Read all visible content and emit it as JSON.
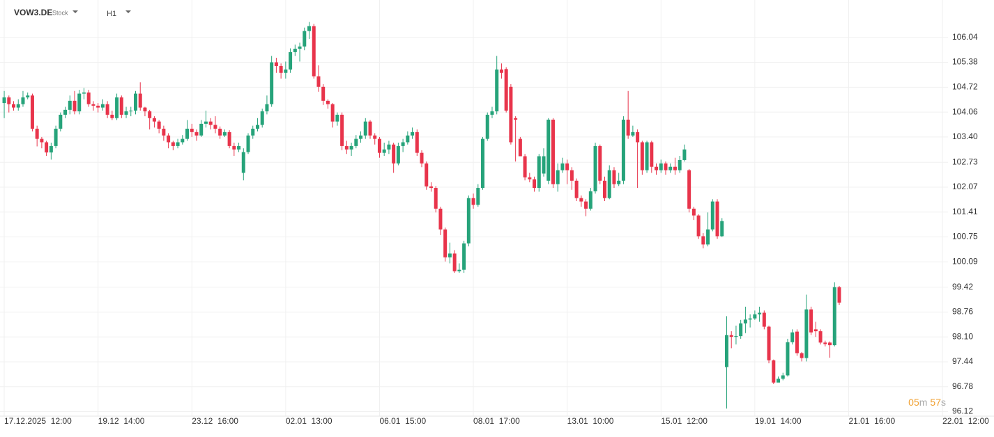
{
  "chart_data": {
    "type": "candlestick",
    "symbol": "VOW3.DE",
    "instrument_type": "Stock",
    "timeframe": "H1",
    "countdown": {
      "minutes": "05",
      "minutes_unit": "m",
      "seconds": "57",
      "seconds_unit": "s"
    },
    "up_color": "#26a37a",
    "down_color": "#e8344b",
    "grid": true,
    "ylim": [
      96.0,
      106.7
    ],
    "yticks": [
      106.04,
      105.38,
      104.72,
      104.06,
      {
        "value": 103.4,
        "label": "103.40"
      },
      102.73,
      102.07,
      101.41,
      100.75,
      100.09,
      99.42,
      98.76,
      {
        "value": 98.1,
        "label": "98.10"
      },
      97.44,
      96.78,
      96.12
    ],
    "xlim": [
      -0.9,
      209.5
    ],
    "xticks": [
      {
        "value": 0,
        "label": "17.12.2025  12:00"
      },
      {
        "value": 20,
        "label": "19.12  14:00"
      },
      {
        "value": 40,
        "label": "23.12  16:00"
      },
      {
        "value": 60,
        "label": "02.01  13:00"
      },
      {
        "value": 80,
        "label": "06.01  15:00"
      },
      {
        "value": 100,
        "label": "08.01  17:00"
      },
      {
        "value": 120,
        "label": "13.01  10:00"
      },
      {
        "value": 140,
        "label": "15.01  12:00"
      },
      {
        "value": 160,
        "label": "19.01  14:00"
      },
      {
        "value": 180,
        "label": "21.01  16:00"
      },
      {
        "value": 200,
        "label": "22.01  12:00"
      }
    ],
    "ohlc": [
      [
        104.3,
        104.62,
        103.9,
        104.45
      ],
      [
        104.45,
        104.5,
        104.05,
        104.27
      ],
      [
        104.27,
        104.35,
        104.1,
        104.18
      ],
      [
        104.18,
        104.4,
        104.1,
        104.27
      ],
      [
        104.27,
        104.62,
        104.2,
        104.45
      ],
      [
        104.45,
        104.58,
        104.4,
        104.5
      ],
      [
        104.5,
        104.55,
        103.55,
        103.62
      ],
      [
        103.62,
        103.7,
        103.15,
        103.35
      ],
      [
        103.35,
        103.4,
        103.1,
        103.26
      ],
      [
        103.26,
        103.3,
        102.9,
        102.99
      ],
      [
        102.99,
        103.25,
        102.8,
        103.16
      ],
      [
        103.16,
        103.7,
        103.1,
        103.62
      ],
      [
        103.62,
        104.05,
        103.55,
        103.99
      ],
      [
        103.99,
        104.2,
        103.9,
        104.12
      ],
      [
        104.12,
        104.5,
        104.0,
        104.36
      ],
      [
        104.36,
        104.62,
        104.0,
        104.08
      ],
      [
        104.08,
        104.65,
        104.0,
        104.55
      ],
      [
        104.55,
        104.7,
        104.4,
        104.58
      ],
      [
        104.58,
        104.65,
        104.2,
        104.27
      ],
      [
        104.27,
        104.35,
        104.1,
        104.23
      ],
      [
        104.23,
        104.3,
        104.05,
        104.18
      ],
      [
        104.18,
        104.4,
        104.1,
        104.27
      ],
      [
        104.27,
        104.35,
        103.9,
        103.99
      ],
      [
        103.99,
        104.1,
        103.85,
        103.9
      ],
      [
        103.9,
        104.55,
        103.85,
        104.45
      ],
      [
        104.45,
        104.5,
        103.9,
        103.99
      ],
      [
        103.99,
        104.2,
        103.9,
        104.08
      ],
      [
        104.08,
        104.2,
        103.95,
        104.1
      ],
      [
        104.1,
        104.62,
        104.0,
        104.55
      ],
      [
        104.55,
        104.85,
        104.1,
        104.18
      ],
      [
        104.18,
        104.2,
        103.95,
        104.08
      ],
      [
        104.08,
        104.12,
        103.6,
        103.9
      ],
      [
        103.9,
        103.95,
        103.65,
        103.81
      ],
      [
        103.81,
        103.85,
        103.5,
        103.62
      ],
      [
        103.62,
        103.7,
        103.3,
        103.44
      ],
      [
        103.44,
        103.5,
        103.1,
        103.26
      ],
      [
        103.26,
        103.3,
        103.05,
        103.16
      ],
      [
        103.16,
        103.35,
        103.1,
        103.26
      ],
      [
        103.26,
        103.45,
        103.2,
        103.35
      ],
      [
        103.35,
        103.85,
        103.3,
        103.62
      ],
      [
        103.62,
        103.75,
        103.4,
        103.53
      ],
      [
        103.53,
        103.6,
        103.3,
        103.44
      ],
      [
        103.44,
        103.85,
        103.4,
        103.75
      ],
      [
        103.75,
        104.1,
        103.65,
        103.81
      ],
      [
        103.81,
        103.9,
        103.6,
        103.72
      ],
      [
        103.72,
        103.95,
        103.5,
        103.62
      ],
      [
        103.62,
        103.68,
        103.35,
        103.44
      ],
      [
        103.44,
        103.6,
        103.4,
        103.53
      ],
      [
        103.53,
        103.58,
        103.1,
        103.16
      ],
      [
        103.16,
        103.25,
        102.9,
        103.07
      ],
      [
        103.07,
        103.25,
        103.0,
        103.16
      ],
      [
        102.45,
        103.1,
        102.25,
        103.0
      ],
      [
        103.0,
        103.5,
        102.95,
        103.44
      ],
      [
        103.44,
        103.7,
        103.35,
        103.62
      ],
      [
        103.62,
        103.9,
        103.55,
        103.72
      ],
      [
        103.72,
        104.15,
        103.65,
        104.08
      ],
      [
        104.08,
        104.5,
        104.0,
        104.27
      ],
      [
        104.27,
        105.55,
        104.2,
        105.38
      ],
      [
        105.38,
        105.5,
        105.1,
        105.28
      ],
      [
        105.28,
        105.35,
        104.95,
        105.1
      ],
      [
        105.1,
        105.4,
        104.95,
        105.19
      ],
      [
        105.19,
        105.75,
        105.1,
        105.65
      ],
      [
        105.65,
        105.85,
        105.55,
        105.74
      ],
      [
        105.74,
        105.9,
        105.4,
        105.8
      ],
      [
        105.8,
        106.3,
        105.7,
        106.21
      ],
      [
        106.21,
        106.45,
        106.0,
        106.34
      ],
      [
        106.34,
        106.4,
        104.95,
        105.01
      ],
      [
        105.01,
        105.3,
        104.6,
        104.73
      ],
      [
        104.73,
        104.8,
        104.25,
        104.36
      ],
      [
        104.36,
        104.4,
        104.15,
        104.27
      ],
      [
        104.27,
        104.3,
        103.65,
        103.81
      ],
      [
        103.81,
        104.05,
        103.7,
        103.99
      ],
      [
        103.99,
        104.05,
        103.05,
        103.16
      ],
      [
        103.16,
        103.3,
        102.95,
        103.07
      ],
      [
        103.07,
        103.25,
        102.9,
        103.16
      ],
      [
        103.16,
        103.45,
        103.1,
        103.35
      ],
      [
        103.35,
        103.55,
        103.25,
        103.44
      ],
      [
        103.44,
        103.9,
        103.35,
        103.81
      ],
      [
        103.81,
        103.85,
        103.35,
        103.44
      ],
      [
        103.44,
        103.5,
        103.2,
        103.35
      ],
      [
        103.35,
        103.4,
        102.85,
        102.98
      ],
      [
        102.98,
        103.25,
        102.9,
        103.07
      ],
      [
        103.07,
        103.3,
        102.95,
        103.2
      ],
      [
        103.2,
        103.25,
        102.45,
        102.7
      ],
      [
        102.7,
        103.25,
        102.65,
        103.16
      ],
      [
        103.16,
        103.35,
        103.0,
        103.26
      ],
      [
        103.26,
        103.55,
        103.2,
        103.44
      ],
      [
        103.44,
        103.65,
        103.35,
        103.53
      ],
      [
        103.53,
        103.6,
        102.9,
        102.98
      ],
      [
        102.98,
        103.05,
        102.6,
        102.7
      ],
      [
        102.7,
        102.75,
        102.0,
        102.09
      ],
      [
        102.09,
        102.2,
        101.95,
        102.05
      ],
      [
        102.05,
        102.1,
        101.4,
        101.5
      ],
      [
        101.5,
        101.55,
        100.8,
        100.95
      ],
      [
        100.95,
        101.0,
        100.1,
        100.21
      ],
      [
        100.21,
        100.6,
        100.05,
        100.31
      ],
      [
        100.31,
        100.4,
        99.8,
        99.84
      ],
      [
        99.84,
        100.05,
        99.8,
        99.88
      ],
      [
        99.88,
        100.65,
        99.8,
        100.58
      ],
      [
        100.58,
        101.85,
        100.5,
        101.78
      ],
      [
        101.78,
        101.9,
        101.5,
        101.6
      ],
      [
        101.6,
        102.15,
        101.55,
        102.05
      ],
      [
        102.05,
        103.4,
        102.0,
        103.35
      ],
      [
        103.35,
        104.05,
        103.3,
        103.99
      ],
      [
        103.99,
        104.2,
        103.9,
        104.08
      ],
      [
        104.08,
        105.55,
        104.0,
        105.19
      ],
      [
        105.19,
        105.35,
        104.95,
        105.1
      ],
      [
        105.2,
        105.25,
        104.05,
        104.1
      ],
      [
        104.73,
        104.8,
        103.2,
        103.26
      ],
      [
        103.9,
        103.95,
        102.75,
        103.86
      ],
      [
        103.35,
        103.4,
        102.9,
        102.89
      ],
      [
        102.89,
        102.95,
        102.25,
        102.33
      ],
      [
        102.33,
        102.45,
        102.2,
        102.28
      ],
      [
        102.28,
        102.35,
        101.95,
        102.05
      ],
      [
        102.05,
        102.95,
        101.95,
        102.89
      ],
      [
        102.43,
        103.1,
        102.35,
        102.89
      ],
      [
        102.24,
        103.9,
        102.15,
        103.86
      ],
      [
        103.86,
        103.9,
        102.05,
        102.15
      ],
      [
        102.15,
        102.7,
        101.95,
        102.52
      ],
      [
        102.52,
        102.85,
        102.45,
        102.7
      ],
      [
        102.7,
        102.8,
        102.15,
        102.52
      ],
      [
        102.52,
        102.6,
        102.0,
        102.24
      ],
      [
        102.24,
        102.3,
        101.7,
        101.78
      ],
      [
        101.78,
        101.85,
        101.55,
        101.69
      ],
      [
        101.69,
        101.75,
        101.3,
        101.5
      ],
      [
        101.5,
        102.05,
        101.45,
        101.96
      ],
      [
        101.96,
        103.25,
        101.9,
        103.16
      ],
      [
        103.16,
        103.2,
        102.15,
        102.24
      ],
      [
        102.24,
        102.35,
        101.7,
        101.78
      ],
      [
        101.78,
        102.65,
        101.75,
        102.52
      ],
      [
        102.52,
        102.6,
        102.05,
        102.15
      ],
      [
        102.15,
        102.45,
        102.1,
        102.24
      ],
      [
        102.24,
        103.95,
        102.15,
        103.86
      ],
      [
        103.86,
        104.62,
        103.35,
        103.44
      ],
      [
        103.44,
        103.7,
        103.4,
        103.53
      ],
      [
        103.53,
        103.6,
        102.05,
        103.26
      ],
      [
        103.26,
        103.3,
        102.4,
        102.52
      ],
      [
        102.52,
        103.3,
        102.45,
        103.26
      ],
      [
        103.26,
        103.3,
        102.45,
        102.61
      ],
      [
        102.61,
        102.7,
        102.4,
        102.52
      ],
      [
        102.52,
        102.8,
        102.45,
        102.7
      ],
      [
        102.7,
        102.75,
        102.4,
        102.52
      ],
      [
        102.52,
        102.7,
        102.45,
        102.61
      ],
      [
        102.61,
        102.85,
        102.4,
        102.52
      ],
      [
        102.52,
        102.9,
        102.45,
        102.79
      ],
      [
        102.79,
        103.2,
        102.75,
        103.07
      ],
      [
        102.52,
        102.55,
        101.4,
        101.5
      ],
      [
        101.5,
        101.55,
        101.2,
        101.32
      ],
      [
        101.32,
        101.35,
        100.7,
        100.77
      ],
      [
        100.77,
        100.85,
        100.45,
        100.55
      ],
      [
        100.55,
        101.4,
        100.5,
        100.95
      ],
      [
        100.95,
        101.75,
        100.9,
        101.69
      ],
      [
        101.69,
        101.75,
        100.7,
        100.77
      ],
      [
        100.77,
        101.25,
        100.75,
        101.17
      ],
      [
        97.3,
        98.65,
        96.2,
        98.15
      ],
      [
        98.15,
        98.25,
        97.8,
        98.1
      ],
      [
        98.1,
        98.4,
        97.9,
        98.12
      ],
      [
        98.12,
        98.55,
        98.05,
        98.46
      ],
      [
        98.46,
        98.9,
        98.2,
        98.56
      ],
      [
        98.56,
        98.7,
        98.35,
        98.59
      ],
      [
        98.59,
        98.8,
        98.55,
        98.7
      ],
      [
        98.7,
        98.9,
        98.5,
        98.74
      ],
      [
        98.74,
        98.8,
        98.3,
        98.37
      ],
      [
        98.37,
        98.4,
        97.4,
        97.48
      ],
      [
        97.48,
        97.5,
        96.85,
        96.89
      ],
      [
        96.89,
        97.05,
        96.9,
        96.99
      ],
      [
        96.99,
        97.15,
        96.95,
        97.08
      ],
      [
        97.08,
        98.05,
        97.05,
        97.96
      ],
      [
        97.96,
        98.3,
        97.9,
        98.22
      ],
      [
        98.24,
        98.3,
        97.6,
        97.67
      ],
      [
        97.67,
        97.7,
        97.45,
        97.54
      ],
      [
        97.54,
        99.22,
        97.45,
        98.83
      ],
      [
        98.83,
        98.9,
        98.15,
        98.22
      ],
      [
        98.3,
        98.5,
        98.1,
        98.25
      ],
      [
        98.25,
        98.3,
        97.9,
        97.95
      ],
      [
        97.95,
        98.0,
        97.85,
        97.91
      ],
      [
        97.95,
        97.98,
        97.55,
        97.88
      ],
      [
        97.88,
        99.55,
        97.85,
        99.42
      ],
      [
        99.42,
        99.45,
        98.95,
        99.01
      ]
    ]
  }
}
